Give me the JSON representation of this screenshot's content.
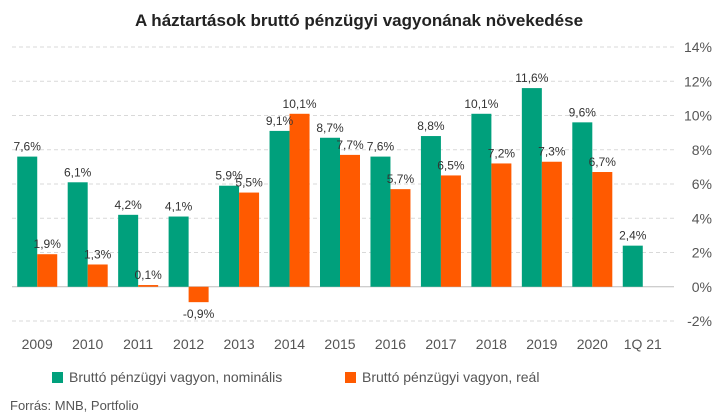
{
  "chart_data": {
    "type": "bar",
    "title": "A háztartások bruttó pénzügyi vagyonának növekedése",
    "categories": [
      "2009",
      "2010",
      "2011",
      "2012",
      "2013",
      "2014",
      "2015",
      "2016",
      "2017",
      "2018",
      "2019",
      "2020",
      "1Q 21"
    ],
    "series": [
      {
        "name": "Bruttó pénzügyi vagyon, nominális",
        "color": "#00a07c",
        "values": [
          7.6,
          6.1,
          4.2,
          4.1,
          5.9,
          9.1,
          8.7,
          7.6,
          8.8,
          10.1,
          11.6,
          9.6,
          2.4
        ],
        "labels": [
          "7,6%",
          "6,1%",
          "4,2%",
          "4,1%",
          "5,9%",
          "9,1%",
          "8,7%",
          "7,6%",
          "8,8%",
          "10,1%",
          "11,6%",
          "9,6%",
          "2,4%"
        ]
      },
      {
        "name": "Bruttó pénzügyi vagyon, reál",
        "color": "#ff5a00",
        "values": [
          1.9,
          1.3,
          0.1,
          -0.9,
          5.5,
          10.1,
          7.7,
          5.7,
          6.5,
          7.2,
          7.3,
          6.7,
          null
        ],
        "labels": [
          "1,9%",
          "1,3%",
          "0,1%",
          "-0,9%",
          "5,5%",
          "10,1%",
          "7,7%",
          "5,7%",
          "6,5%",
          "7,2%",
          "7,3%",
          "6,7%",
          ""
        ]
      }
    ],
    "ylim": [
      -2,
      14
    ],
    "yticks": [
      -2,
      0,
      2,
      4,
      6,
      8,
      10,
      12,
      14
    ],
    "ytick_labels": [
      "-2%",
      "0%",
      "2%",
      "4%",
      "6%",
      "8%",
      "10%",
      "12%",
      "14%"
    ],
    "y_axis_side": "right",
    "grid": true,
    "legend_position": "bottom",
    "source": "Forrás: MNB, Portfolio"
  }
}
